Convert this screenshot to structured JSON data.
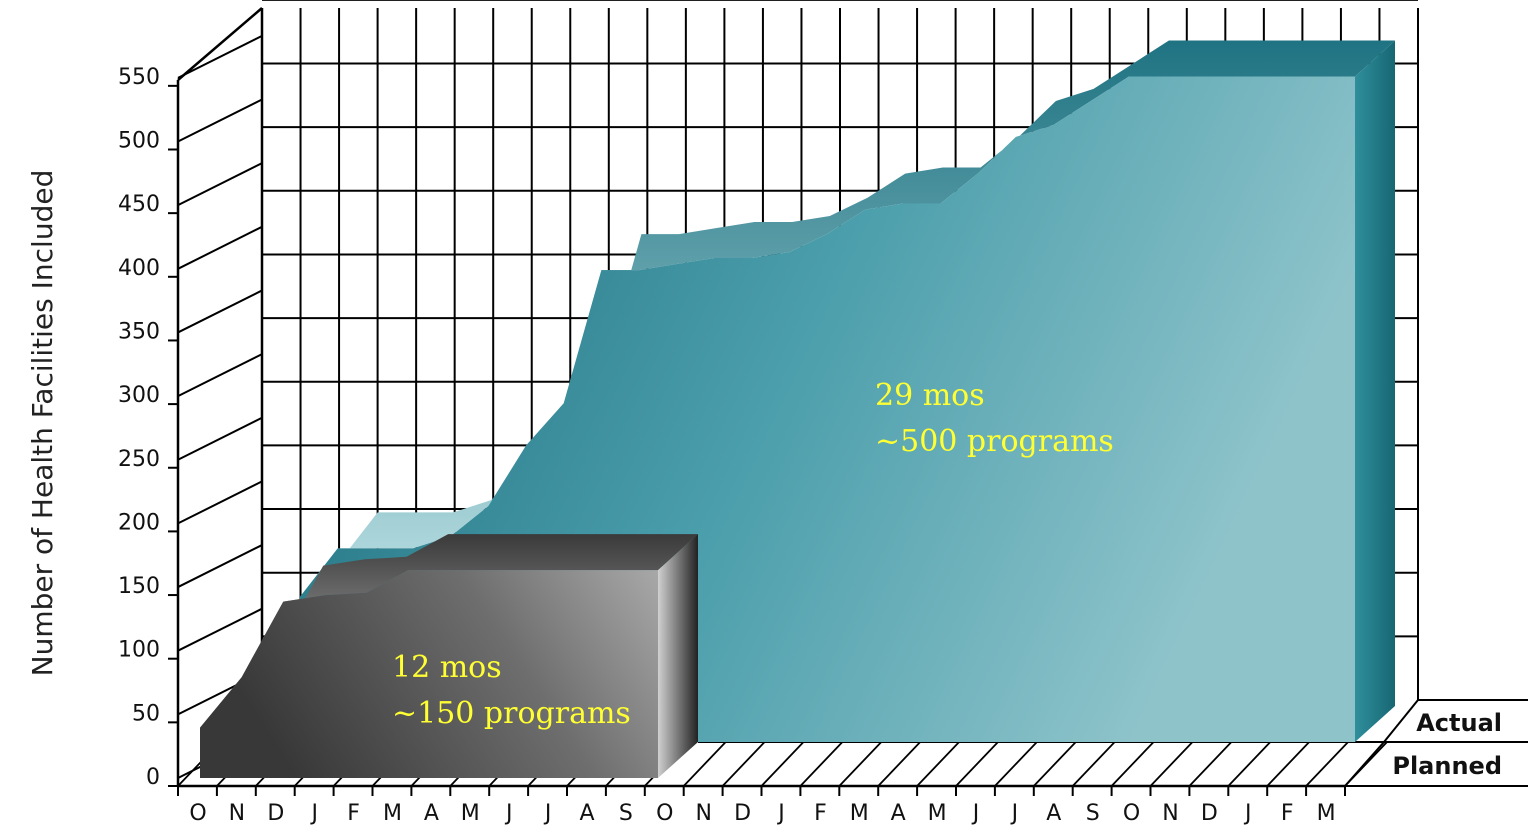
{
  "chart_data": {
    "type": "area",
    "ylabel": "Number of Health Facilities Included",
    "ylim": [
      0,
      550
    ],
    "yticks": [
      0,
      50,
      100,
      150,
      200,
      250,
      300,
      350,
      400,
      450,
      500,
      550
    ],
    "x": [
      "O",
      "N",
      "D",
      "J",
      "F",
      "M",
      "A",
      "M",
      "J",
      "J",
      "A",
      "S",
      "O",
      "N",
      "D",
      "J",
      "F",
      "M",
      "A",
      "M",
      "J",
      "J",
      "A",
      "S",
      "O",
      "N",
      "D",
      "J",
      "F",
      "M"
    ],
    "grid": true,
    "series": [
      {
        "name": "Planned",
        "color": "#4a4a4a",
        "values": [
          40,
          80,
          140,
          145,
          147,
          165,
          165,
          165,
          165,
          165,
          165,
          165,
          null,
          null,
          null,
          null,
          null,
          null,
          null,
          null,
          null,
          null,
          null,
          null,
          null,
          null,
          null,
          null,
          null,
          null
        ]
      },
      {
        "name": "Actual",
        "color": "#2a8898",
        "values": [
          null,
          120,
          160,
          160,
          160,
          170,
          195,
          245,
          280,
          390,
          390,
          395,
          400,
          400,
          405,
          420,
          440,
          445,
          445,
          470,
          500,
          510,
          530,
          550,
          550,
          550,
          550,
          550,
          550,
          550
        ]
      }
    ],
    "legend": [
      "Actual",
      "Planned"
    ],
    "legend_placement": "bottom-right",
    "annotations": [
      {
        "lines": [
          "12 mos",
          "~150 programs"
        ],
        "series": "Planned"
      },
      {
        "lines": [
          "29 mos",
          "~500 programs"
        ],
        "series": "Actual"
      }
    ]
  }
}
